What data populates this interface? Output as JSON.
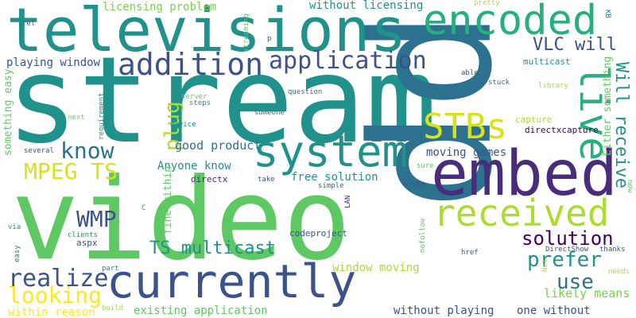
{
  "words": [
    {
      "text": "stream",
      "color": "#21918c"
    },
    {
      "text": "video",
      "color": "#5ec962"
    },
    {
      "text": "pp",
      "color": "#2c728e"
    },
    {
      "text": "televisions",
      "color": "#21918c"
    },
    {
      "text": "embed",
      "color": "#472d7b"
    },
    {
      "text": "currently",
      "color": "#3b528b"
    },
    {
      "text": "encoded",
      "color": "#28ae80"
    },
    {
      "text": "system",
      "color": "#21918c"
    },
    {
      "text": "received",
      "color": "#addc30"
    },
    {
      "text": "live",
      "color": "#28ae80"
    },
    {
      "text": "addition",
      "color": "#3b528b"
    },
    {
      "text": "application",
      "color": "#3b528b"
    },
    {
      "text": "STBs",
      "color": "#d8e219"
    },
    {
      "text": "MPEG TS",
      "color": "#d8e219"
    },
    {
      "text": "know",
      "color": "#2c728e"
    },
    {
      "text": "plug",
      "color": "#addc30"
    },
    {
      "text": "WMP",
      "color": "#3b528b"
    },
    {
      "text": "realize",
      "color": "#3b528b"
    },
    {
      "text": "looking",
      "color": "#fde725"
    },
    {
      "text": "solution",
      "color": "#440154"
    },
    {
      "text": "prefer",
      "color": "#21918c"
    },
    {
      "text": "use",
      "color": "#2c728e"
    },
    {
      "text": "TS multicast",
      "color": "#21918c"
    },
    {
      "text": "VLC will",
      "color": "#3b528b"
    },
    {
      "text": "Will receive",
      "color": "#21918c"
    },
    {
      "text": "good product",
      "color": "#2c728e"
    },
    {
      "text": "Anyone know",
      "color": "#21918c"
    },
    {
      "text": "moving games",
      "color": "#3b528b"
    },
    {
      "text": "free solution",
      "color": "#21918c"
    },
    {
      "text": "playing window",
      "color": "#3b528b"
    },
    {
      "text": "licensing problem",
      "color": "#7ad151"
    },
    {
      "text": "without licensing",
      "color": "#21918c"
    },
    {
      "text": "likely means",
      "color": "#7ad151"
    },
    {
      "text": "window moving",
      "color": "#addc30"
    },
    {
      "text": "existing application",
      "color": "#5ec962"
    },
    {
      "text": "without playing",
      "color": "#3b528b"
    },
    {
      "text": "one without",
      "color": "#3b528b"
    },
    {
      "text": "within reason",
      "color": "#fde725"
    },
    {
      "text": "fine within",
      "color": "#5ec962"
    },
    {
      "text": "something easy",
      "color": "#5ec962"
    },
    {
      "text": "Either something",
      "color": "#5ec962"
    },
    {
      "text": "directxcapture",
      "color": "#440154"
    },
    {
      "text": "codeproject",
      "color": "#3b528b"
    },
    {
      "text": "capture",
      "color": "#addc30"
    },
    {
      "text": "multicast",
      "color": "#21918c"
    },
    {
      "text": "directx",
      "color": "#472d7b"
    },
    {
      "text": "aspx",
      "color": "#3b528b"
    },
    {
      "text": "clients",
      "color": "#21918c"
    },
    {
      "text": "library",
      "color": "#addc30"
    },
    {
      "text": "pretty",
      "color": "#addc30"
    },
    {
      "text": "stuck",
      "color": "#2c728e"
    },
    {
      "text": "able",
      "color": "#3b528b"
    },
    {
      "text": "rel",
      "color": "#3b528b"
    },
    {
      "text": "p",
      "color": "#3b528b"
    },
    {
      "text": "server",
      "color": "#5ec962"
    },
    {
      "text": "steps",
      "color": "#21918c"
    },
    {
      "text": "question",
      "color": "#2c728e"
    },
    {
      "text": "someone",
      "color": "#2c728e"
    },
    {
      "text": "device",
      "color": "#21918c"
    },
    {
      "text": "requirement",
      "color": "#21918c"
    },
    {
      "text": "streaming",
      "color": "#5ec962"
    },
    {
      "text": "next",
      "color": "#7ad151"
    },
    {
      "text": "several",
      "color": "#3b528b"
    },
    {
      "text": "take",
      "color": "#3b528b"
    },
    {
      "text": "simple",
      "color": "#2c728e"
    },
    {
      "text": "wrote",
      "color": "#3b528b"
    },
    {
      "text": "sure",
      "color": "#5ec962"
    },
    {
      "text": "LAN",
      "color": "#472d7b"
    },
    {
      "text": "C",
      "color": "#21918c"
    },
    {
      "text": "via",
      "color": "#21918c"
    },
    {
      "text": "easy",
      "color": "#2c728e"
    },
    {
      "text": "part",
      "color": "#21918c"
    },
    {
      "text": "build",
      "color": "#addc30"
    },
    {
      "text": "nofollow",
      "color": "#5ec962"
    },
    {
      "text": "href",
      "color": "#3b528b"
    },
    {
      "text": "DirectShow",
      "color": "#3b528b"
    },
    {
      "text": "thanks",
      "color": "#3b528b"
    },
    {
      "text": "Net",
      "color": "#addc30"
    },
    {
      "text": "needs",
      "color": "#addc30"
    },
    {
      "text": "KB",
      "color": "#2c728e"
    },
    {
      "text": "now",
      "color": "#5ec962"
    }
  ]
}
